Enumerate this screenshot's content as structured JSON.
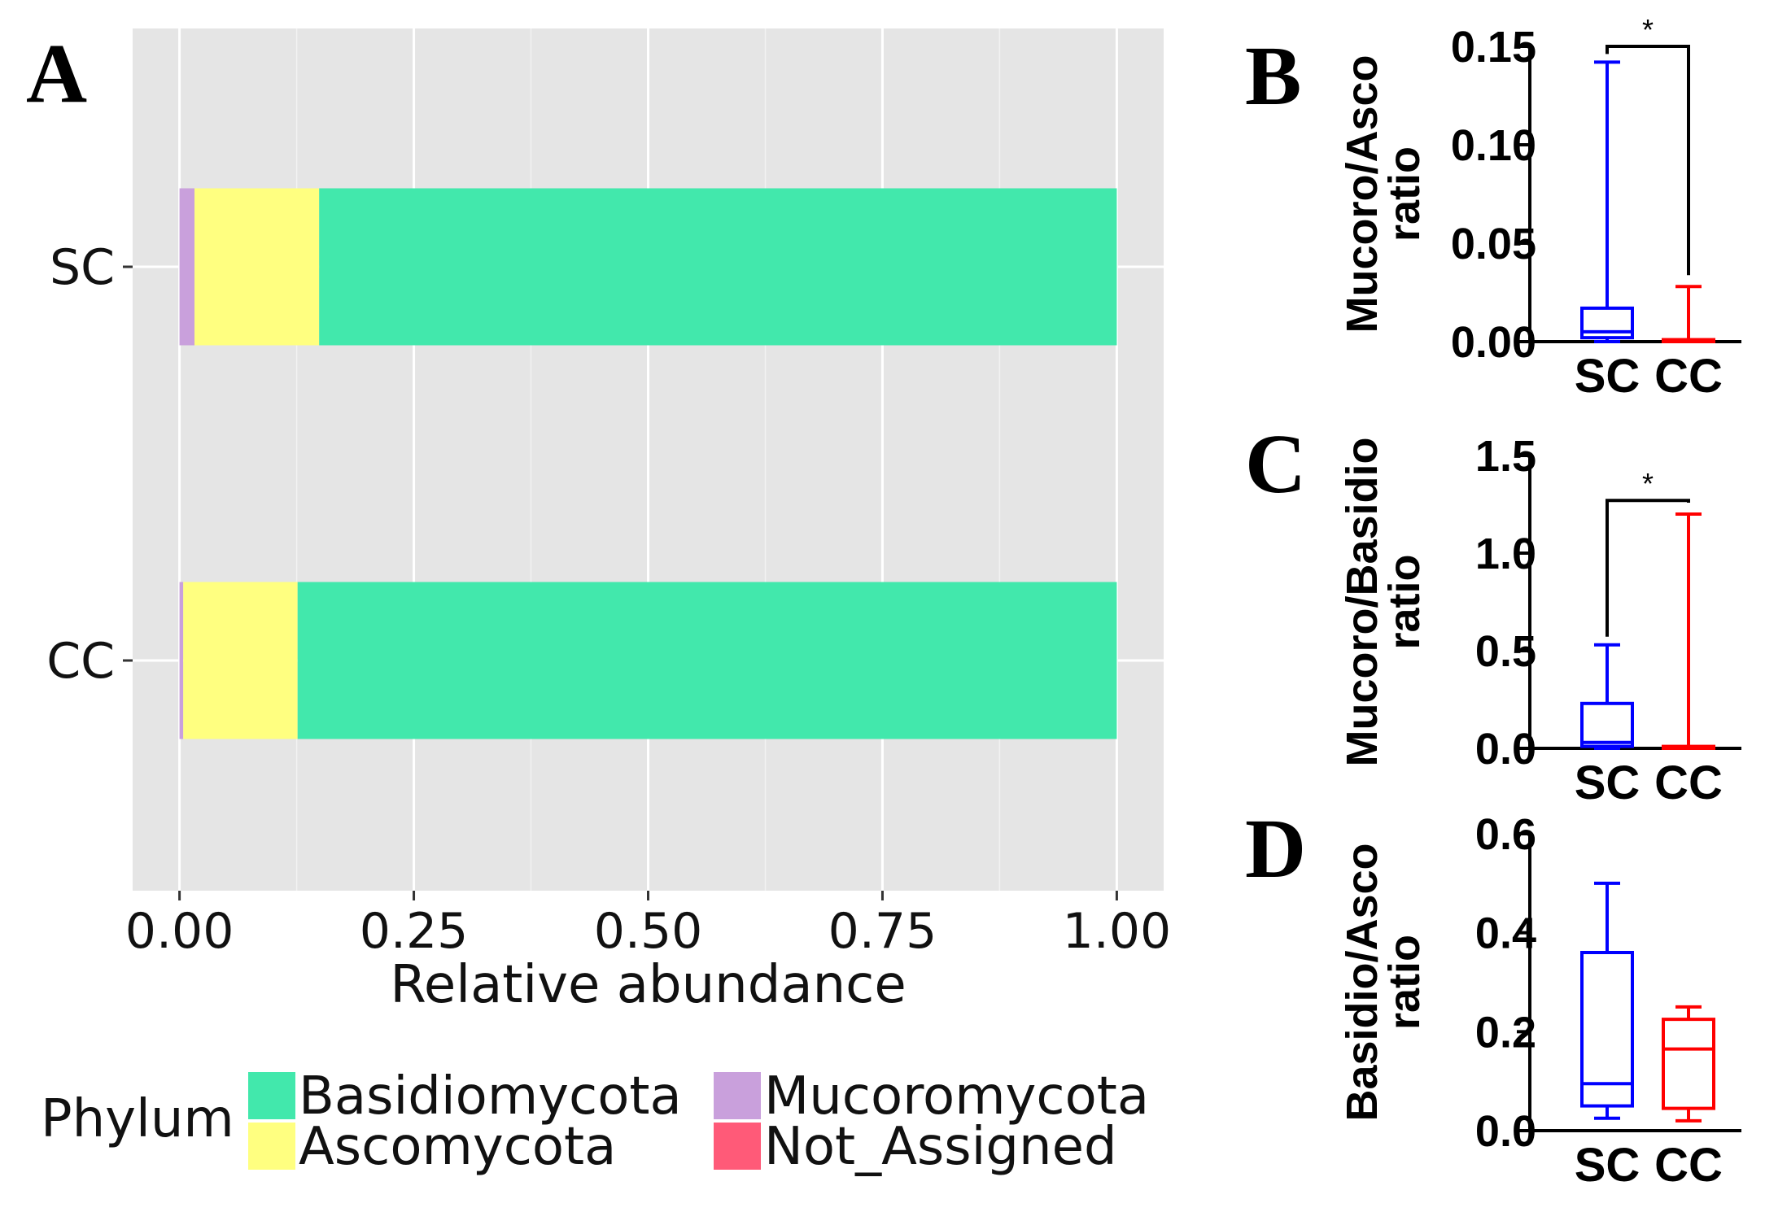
{
  "chart_data": [
    {
      "panel": "A",
      "type": "bar",
      "orientation": "horizontal",
      "stacked": true,
      "categories": [
        "SC",
        "CC"
      ],
      "series": [
        {
          "name": "Mucoromycota",
          "color": "#c9a0dc",
          "values": [
            0.016,
            0.004
          ]
        },
        {
          "name": "Ascomycota",
          "color": "#ffff80",
          "values": [
            0.133,
            0.122
          ]
        },
        {
          "name": "Basidiomycota",
          "color": "#42e8ac",
          "values": [
            0.851,
            0.874
          ]
        },
        {
          "name": "Not_Assigned",
          "color": "#ff5a78",
          "values": [
            0.0,
            0.0
          ]
        }
      ],
      "xlabel": "Relative abundance",
      "xlim": [
        -0.05,
        1.05
      ],
      "xticks": [
        "0.00",
        "0.25",
        "0.50",
        "0.75",
        "1.00"
      ],
      "grid": true,
      "legend": {
        "title": "Phylum",
        "position": "bottom",
        "entries": [
          {
            "label": "Basidiomycota",
            "color": "#42e8ac"
          },
          {
            "label": "Ascomycota",
            "color": "#ffff80"
          },
          {
            "label": "Mucoromycota",
            "color": "#c9a0dc"
          },
          {
            "label": "Not_Assigned",
            "color": "#ff5a78"
          }
        ]
      }
    },
    {
      "panel": "B",
      "type": "box",
      "ylabel": "Mucoro/Asco ratio",
      "ylim": [
        0,
        0.15
      ],
      "yticks": [
        "0.00",
        "0.05",
        "0.10",
        "0.15"
      ],
      "categories": [
        "SC",
        "CC"
      ],
      "boxes": [
        {
          "name": "SC",
          "color": "#0000ff",
          "min": 0.0,
          "q1": 0.002,
          "median": 0.005,
          "q3": 0.017,
          "max": 0.142
        },
        {
          "name": "CC",
          "color": "#ff0000",
          "min": 0.0,
          "q1": 0.0,
          "median": 0.0,
          "q3": 0.001,
          "max": 0.028
        }
      ],
      "significance": {
        "label": "*",
        "y": 0.15
      }
    },
    {
      "panel": "C",
      "type": "box",
      "ylabel": "Mucoro/Basidio ratio",
      "ylim": [
        0,
        1.5
      ],
      "yticks": [
        "0.0",
        "0.5",
        "1.0",
        "1.5"
      ],
      "categories": [
        "SC",
        "CC"
      ],
      "boxes": [
        {
          "name": "SC",
          "color": "#0000ff",
          "min": 0.0,
          "q1": 0.01,
          "median": 0.03,
          "q3": 0.23,
          "max": 0.53
        },
        {
          "name": "CC",
          "color": "#ff0000",
          "min": 0.0,
          "q1": 0.0,
          "median": 0.0,
          "q3": 0.01,
          "max": 1.2
        }
      ],
      "significance": {
        "label": "*",
        "y": 1.27
      }
    },
    {
      "panel": "D",
      "type": "box",
      "ylabel": "Basidio/Asco ratio",
      "ylim": [
        0,
        0.6
      ],
      "yticks": [
        "0.0",
        "0.2",
        "0.4",
        "0.6"
      ],
      "categories": [
        "SC",
        "CC"
      ],
      "boxes": [
        {
          "name": "SC",
          "color": "#0000ff",
          "min": 0.025,
          "q1": 0.05,
          "median": 0.095,
          "q3": 0.36,
          "max": 0.5
        },
        {
          "name": "CC",
          "color": "#ff0000",
          "min": 0.02,
          "q1": 0.045,
          "median": 0.165,
          "q3": 0.225,
          "max": 0.25
        }
      ]
    }
  ]
}
